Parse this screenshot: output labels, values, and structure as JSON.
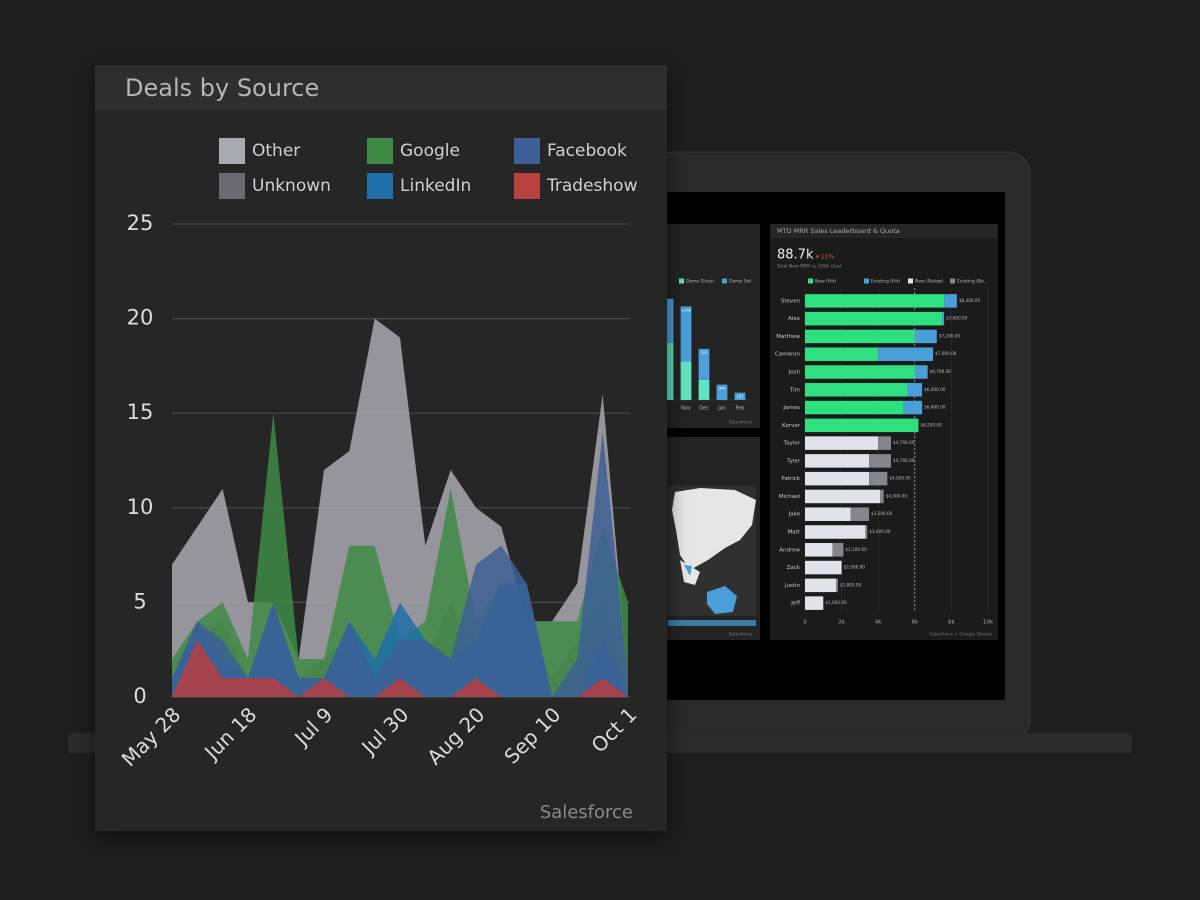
{
  "chart_data": [
    {
      "type": "area",
      "title": "Deals by Source",
      "footer": "Salesforce",
      "categories": [
        "May 28",
        null,
        null,
        "Jun 18",
        null,
        null,
        "Jul 9",
        null,
        null,
        "Jul 30",
        null,
        null,
        "Aug 20",
        null,
        null,
        "Sep 10",
        null,
        null,
        "Oct 1"
      ],
      "series": [
        {
          "name": "Other",
          "color": "#a9a9b0",
          "values": [
            7,
            9,
            11,
            5,
            5,
            2,
            12,
            13,
            20,
            19,
            8,
            12,
            10,
            9,
            4,
            4,
            6,
            16,
            1
          ]
        },
        {
          "name": "Unknown",
          "color": "#6a6a70",
          "values": [
            1,
            3,
            4,
            1,
            3,
            1,
            2,
            3,
            1,
            2,
            2,
            5,
            2,
            5,
            3,
            1,
            3,
            5,
            0
          ]
        },
        {
          "name": "Google",
          "color": "#3f8a45",
          "values": [
            2,
            4,
            5,
            2,
            15,
            2,
            2,
            8,
            8,
            3,
            4,
            11,
            4,
            6,
            4,
            4,
            4,
            9,
            5
          ]
        },
        {
          "name": "LinkedIn",
          "color": "#1f6fa8",
          "values": [
            1,
            4,
            2,
            1,
            5,
            1,
            1,
            4,
            2,
            5,
            3,
            2,
            3,
            6,
            6,
            0,
            0,
            3,
            0
          ]
        },
        {
          "name": "Facebook",
          "color": "#3d5f95",
          "values": [
            1,
            4,
            3,
            1,
            5,
            1,
            1,
            4,
            1,
            3,
            3,
            2,
            7,
            8,
            6,
            0,
            2,
            14,
            1
          ]
        },
        {
          "name": "Tradeshow",
          "color": "#b8403f",
          "values": [
            0,
            3,
            1,
            1,
            1,
            0,
            1,
            0,
            0,
            1,
            0,
            0,
            1,
            0,
            0,
            0,
            0,
            1,
            0
          ]
        }
      ],
      "ylim": [
        0,
        25
      ],
      "yticks": [
        0,
        5,
        10,
        15,
        20,
        25
      ],
      "grid": true,
      "legend": "top"
    },
    {
      "type": "bar",
      "orientation": "vertical",
      "stacked": true,
      "footer": "Salesforce",
      "categories": [
        null,
        "Nov",
        "Dec",
        "Jan",
        "Feb"
      ],
      "series": [
        {
          "name": "Demo Given",
          "color": "#5fe3c3",
          "values": [
            1300,
            880,
            460,
            null,
            null
          ]
        },
        {
          "name": "Demo Set",
          "color": "#4b9fda",
          "values": [
            1000,
            1248,
            702,
            349,
            167
          ],
          "value_labels": [
            null,
            "1,248",
            "702",
            "349",
            "167"
          ]
        }
      ],
      "ylim": [
        0,
        2500
      ]
    },
    {
      "type": "bar",
      "orientation": "horizontal",
      "stacked": true,
      "title": "MTD MRR Sales Leaderboard & Quota",
      "kpi": "88.7k",
      "kpi_change": "▾ 11%",
      "subtitle": "Total New MRR vs 100k Goal",
      "footer": "Salesforce + Google Sheets",
      "categories": [
        "Steven",
        "Alex",
        "Matthew",
        "Cameron",
        "Josh",
        "Tim",
        "James",
        "Korver",
        "Taylor",
        "Tyler",
        "Patrick",
        "Michael",
        "Jake",
        "Matt",
        "Andrew",
        "Zack",
        "Justin",
        "Jeff"
      ],
      "series": [
        {
          "name": "New (Hit)",
          "color": "#2ee07f",
          "values": [
            7600,
            7500,
            6000,
            4000,
            6000,
            5600,
            5400,
            6200,
            null,
            null,
            null,
            null,
            null,
            null,
            null,
            null,
            null,
            null
          ]
        },
        {
          "name": "Existing (Hit)",
          "color": "#4a9fd8",
          "values": [
            700,
            100,
            1200,
            3000,
            700,
            800,
            1000,
            null,
            null,
            null,
            null,
            null,
            null,
            null,
            null,
            null,
            null,
            null
          ]
        },
        {
          "name": "New (Below)",
          "color": "#e2e2ea",
          "values": [
            null,
            null,
            null,
            null,
            null,
            null,
            null,
            null,
            4000,
            3500,
            3500,
            4100,
            2500,
            3300,
            1500,
            2000,
            1700,
            1000
          ]
        },
        {
          "name": "Existing (Be...",
          "color": "#85858c",
          "values": [
            null,
            null,
            null,
            null,
            null,
            null,
            null,
            null,
            700,
            1200,
            1000,
            200,
            1000,
            100,
            600,
            null,
            100,
            null
          ]
        }
      ],
      "totals": [
        8300,
        7600,
        7200,
        7000,
        6700,
        6400,
        6400,
        6200,
        4700,
        4700,
        4500,
        4300,
        3500,
        3400,
        2100,
        2000,
        1800,
        1000
      ],
      "total_labels": [
        "$8,300.00",
        "$7,600.00",
        "$7,200.00",
        "$7,000.00",
        "$6,700.00",
        "$6,400.00",
        "$6,400.00",
        "$6,200.00",
        "$4,700.00",
        "$4,700.00",
        "$4,500.00",
        "$4,300.00",
        "$3,500.00",
        "$3,400.00",
        "$2,100.00",
        "$2,000.00",
        "$1,800.00",
        "$1,000.00"
      ],
      "xlim": [
        0,
        10000
      ],
      "xticks": [
        0,
        {
          "value": 2000,
          "label": "2k"
        },
        {
          "value": 4000,
          "label": "4k"
        },
        {
          "value": 6000,
          "label": "6k"
        },
        {
          "value": 8000,
          "label": "8k"
        },
        {
          "value": 10000,
          "label": "10k"
        }
      ],
      "quota": 6000,
      "grid": true
    }
  ],
  "map_panel": {
    "footer": "Salesforce"
  }
}
